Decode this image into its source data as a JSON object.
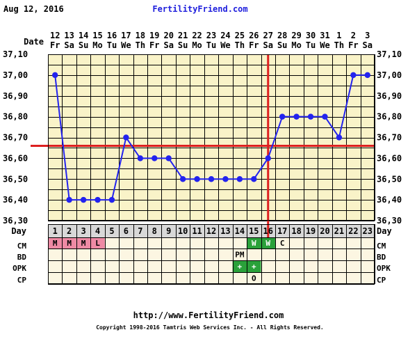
{
  "header": {
    "date_printed": "Aug 12, 2016",
    "site_name": "FertilityFriend.com"
  },
  "footer": {
    "url": "http://www.FertilityFriend.com",
    "copyright": "Copyright 1998-2016 Tamtris Web Services Inc. - All Rights Reserved."
  },
  "colors": {
    "plot_bg": "#f9f3c8",
    "panel_bg": "#fcf6e2",
    "grid": "#000000",
    "temp_line": "#2323ee",
    "coverline": "#dd2020",
    "cm_menstrual": "#ee8aa4",
    "fertile_green": "#2aa13a",
    "day_row_bg": "#d8d8d8"
  },
  "chart_data": {
    "type": "line",
    "title": "",
    "xlabel": "Day",
    "ylabel": "",
    "row_labels": {
      "date": "Date",
      "day": "Day",
      "cm": "CM",
      "bd": "BD",
      "opk": "OPK",
      "cp": "CP"
    },
    "ylim": [
      36.3,
      37.1
    ],
    "yticks": [
      "36,30",
      "36,40",
      "36,50",
      "36,60",
      "36,70",
      "36,80",
      "36,90",
      "37,00",
      "37,10"
    ],
    "cycle_days": [
      1,
      2,
      3,
      4,
      5,
      6,
      7,
      8,
      9,
      10,
      11,
      12,
      13,
      14,
      15,
      16,
      17,
      18,
      19,
      20,
      21,
      22,
      23
    ],
    "dates": [
      "12",
      "13",
      "14",
      "15",
      "16",
      "17",
      "18",
      "19",
      "20",
      "21",
      "22",
      "23",
      "24",
      "25",
      "26",
      "27",
      "28",
      "29",
      "30",
      "31",
      "1",
      "2",
      "3"
    ],
    "weekdays": [
      "Fr",
      "Sa",
      "Su",
      "Mo",
      "Tu",
      "We",
      "Th",
      "Fr",
      "Sa",
      "Su",
      "Mo",
      "Tu",
      "We",
      "Th",
      "Fr",
      "Sa",
      "Su",
      "Mo",
      "Tu",
      "We",
      "Th",
      "Fr",
      "Sa"
    ],
    "series": [
      {
        "values": [
          37.0,
          36.4,
          36.4,
          36.4,
          36.4,
          36.7,
          36.6,
          36.6,
          36.6,
          36.5,
          36.5,
          36.5,
          36.5,
          36.5,
          36.5,
          36.6,
          36.8,
          36.8,
          36.8,
          36.8,
          36.7,
          37.0,
          37.0
        ]
      }
    ],
    "coverline": 36.66,
    "ovulation_day": 16,
    "cm": [
      {
        "day": 1,
        "label": "M",
        "color": "#ee8aa4"
      },
      {
        "day": 2,
        "label": "M",
        "color": "#ee8aa4"
      },
      {
        "day": 3,
        "label": "M",
        "color": "#ee8aa4"
      },
      {
        "day": 4,
        "label": "L",
        "color": "#ee8aa4"
      },
      {
        "day": 15,
        "label": "W",
        "color": "#2aa13a"
      },
      {
        "day": 16,
        "label": "W",
        "color": "#2aa13a"
      },
      {
        "day": 17,
        "label": "C",
        "color": ""
      }
    ],
    "bd": [
      {
        "day": 14,
        "label": "PM",
        "color": ""
      }
    ],
    "opk": [
      {
        "day": 14,
        "label": "+",
        "color": "#2aa13a"
      },
      {
        "day": 15,
        "label": "+",
        "color": "#2aa13a"
      }
    ],
    "cp": [
      {
        "day": 15,
        "label": "O",
        "color": ""
      }
    ]
  }
}
